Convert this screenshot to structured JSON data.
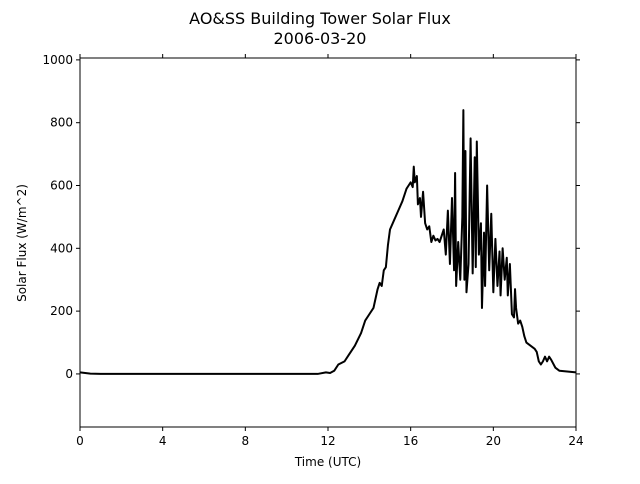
{
  "chart_data": {
    "type": "line",
    "title": "AO&SS Building Tower Solar Flux",
    "subtitle": "2006-03-20",
    "x_label": "Time (UTC)",
    "y_label": "Solar Flux (W/m^2)",
    "color": "#000000",
    "xlim": [
      0,
      24
    ],
    "xticks": [
      0,
      4,
      8,
      12,
      16,
      20,
      24
    ],
    "ylim": [
      -169,
      1006
    ],
    "yticks": [
      0,
      200,
      400,
      600,
      800,
      1000
    ],
    "x": [
      0,
      0.5,
      1,
      4,
      8,
      11.5,
      11.9,
      12.1,
      12.3,
      12.5,
      12.8,
      13.0,
      13.3,
      13.6,
      13.8,
      14.0,
      14.2,
      14.4,
      14.5,
      14.6,
      14.7,
      14.8,
      14.9,
      15.0,
      15.2,
      15.4,
      15.6,
      15.8,
      15.9,
      16.0,
      16.1,
      16.15,
      16.2,
      16.3,
      16.35,
      16.45,
      16.5,
      16.6,
      16.7,
      16.8,
      16.9,
      17.0,
      17.1,
      17.2,
      17.3,
      17.4,
      17.5,
      17.6,
      17.7,
      17.8,
      17.9,
      18.0,
      18.1,
      18.15,
      18.2,
      18.3,
      18.4,
      18.5,
      18.55,
      18.6,
      18.65,
      18.7,
      18.8,
      18.9,
      19.0,
      19.1,
      19.15,
      19.2,
      19.3,
      19.4,
      19.45,
      19.55,
      19.6,
      19.7,
      19.8,
      19.9,
      20.0,
      20.1,
      20.2,
      20.3,
      20.35,
      20.45,
      20.55,
      20.65,
      20.7,
      20.8,
      20.9,
      21.0,
      21.05,
      21.1,
      21.2,
      21.3,
      21.4,
      21.5,
      21.6,
      21.8,
      22.0,
      22.1,
      22.2,
      22.3,
      22.4,
      22.5,
      22.6,
      22.7,
      22.8,
      23.0,
      23.2,
      24.0
    ],
    "values": [
      5,
      1,
      0,
      0,
      0,
      0,
      5,
      3,
      10,
      30,
      40,
      60,
      90,
      130,
      170,
      190,
      210,
      270,
      290,
      280,
      330,
      340,
      410,
      460,
      490,
      520,
      550,
      590,
      600,
      610,
      595,
      660,
      610,
      630,
      540,
      560,
      500,
      580,
      480,
      460,
      470,
      420,
      440,
      425,
      430,
      420,
      440,
      460,
      380,
      520,
      350,
      560,
      330,
      640,
      280,
      420,
      300,
      500,
      840,
      300,
      710,
      260,
      350,
      750,
      320,
      690,
      340,
      740,
      380,
      480,
      210,
      450,
      280,
      600,
      330,
      510,
      260,
      430,
      280,
      390,
      250,
      400,
      300,
      370,
      250,
      350,
      190,
      180,
      270,
      210,
      160,
      170,
      150,
      120,
      100,
      90,
      80,
      70,
      40,
      30,
      40,
      55,
      40,
      55,
      45,
      20,
      10,
      5
    ]
  }
}
